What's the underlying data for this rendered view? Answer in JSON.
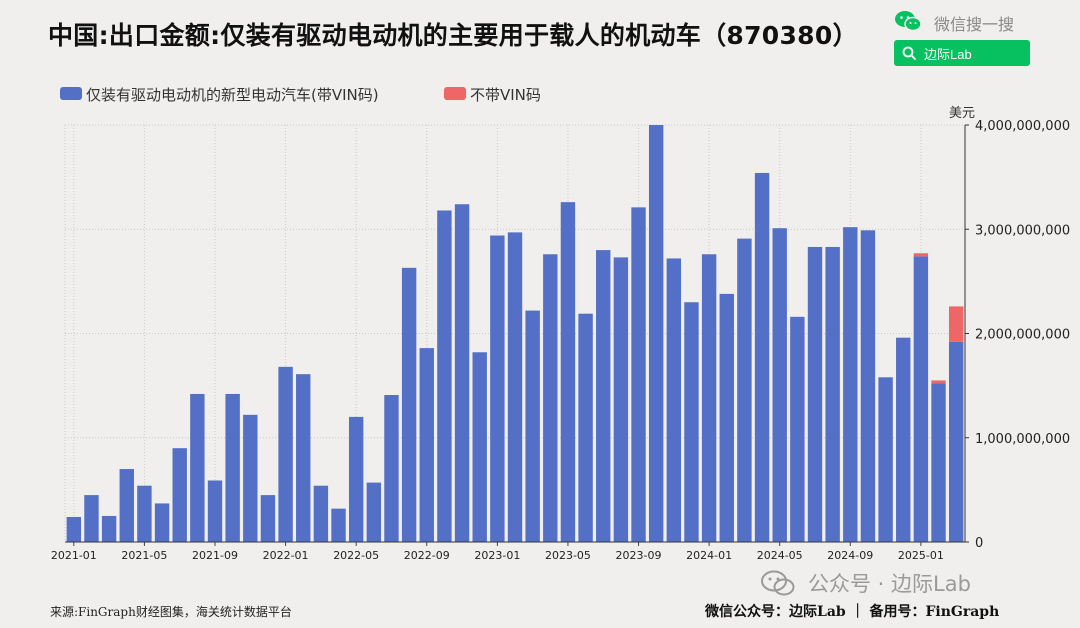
{
  "header": {
    "title": "中国:出口金额:仅装有驱动电动机的主要用于载人的机动车（870380）"
  },
  "wechat": {
    "search_text": "微信搜一搜",
    "search_box_label": "边际Lab",
    "brand_color": "#07c160"
  },
  "watermark": {
    "text": "公众号 · 边际Lab"
  },
  "footer": {
    "source": "来源:FinGraph财经图集，海关统计数据平台",
    "account": "微信公众号：边际Lab ｜ 备用号：FinGraph"
  },
  "chart_data": {
    "type": "bar",
    "stacked": true,
    "title": "中国:出口金额:仅装有驱动电动机的主要用于载人的机动车（870380）",
    "ylabel": "美元",
    "y_axis_position": "right",
    "ylim": [
      0,
      4000000000
    ],
    "yticks": [
      0,
      1000000000,
      2000000000,
      3000000000,
      4000000000
    ],
    "ytick_labels": [
      "0",
      "1,000,000,000",
      "2,000,000,000",
      "3,000,000,000",
      "4,000,000,000"
    ],
    "grid": true,
    "legend_position": "top-left",
    "categories": [
      "2021-01",
      "2021-02",
      "2021-03",
      "2021-04",
      "2021-05",
      "2021-06",
      "2021-07",
      "2021-08",
      "2021-09",
      "2021-10",
      "2021-11",
      "2021-12",
      "2022-01",
      "2022-02",
      "2022-03",
      "2022-04",
      "2022-05",
      "2022-06",
      "2022-07",
      "2022-08",
      "2022-09",
      "2022-10",
      "2022-11",
      "2022-12",
      "2023-01",
      "2023-02",
      "2023-03",
      "2023-04",
      "2023-05",
      "2023-06",
      "2023-07",
      "2023-08",
      "2023-09",
      "2023-10",
      "2023-11",
      "2023-12",
      "2024-01",
      "2024-02",
      "2024-03",
      "2024-04",
      "2024-05",
      "2024-06",
      "2024-07",
      "2024-08",
      "2024-09",
      "2024-10",
      "2024-11",
      "2024-12",
      "2025-01",
      "2025-02",
      "2025-03"
    ],
    "xtick_labels": [
      "2021-01",
      "2021-05",
      "2021-09",
      "2022-01",
      "2022-05",
      "2022-09",
      "2023-01",
      "2023-05",
      "2023-09",
      "2024-01",
      "2024-05",
      "2024-09",
      "2025-01"
    ],
    "series": [
      {
        "name": "仅装有驱动电动机的新型电动汽车(带VIN码)",
        "color": "#5470c6",
        "values": [
          240000000,
          450000000,
          250000000,
          700000000,
          540000000,
          370000000,
          900000000,
          1420000000,
          590000000,
          1420000000,
          1220000000,
          450000000,
          1680000000,
          1610000000,
          540000000,
          320000000,
          1200000000,
          570000000,
          1410000000,
          2630000000,
          1860000000,
          3180000000,
          3240000000,
          1820000000,
          2940000000,
          2970000000,
          2220000000,
          2760000000,
          3260000000,
          2190000000,
          2800000000,
          2730000000,
          3210000000,
          4000000000,
          2720000000,
          2300000000,
          2760000000,
          2380000000,
          2910000000,
          3540000000,
          3010000000,
          2160000000,
          2830000000,
          2830000000,
          3020000000,
          2990000000,
          1580000000,
          1960000000,
          2740000000,
          1520000000,
          1920000000
        ]
      },
      {
        "name": "不带VIN码",
        "color": "#ee6666",
        "values": [
          0,
          0,
          0,
          0,
          0,
          0,
          0,
          0,
          0,
          0,
          0,
          0,
          0,
          0,
          0,
          0,
          0,
          0,
          0,
          0,
          0,
          0,
          0,
          0,
          0,
          0,
          0,
          0,
          0,
          0,
          0,
          0,
          0,
          0,
          0,
          0,
          0,
          0,
          0,
          0,
          0,
          0,
          0,
          0,
          0,
          0,
          0,
          0,
          30000000,
          30000000,
          340000000
        ]
      }
    ]
  }
}
